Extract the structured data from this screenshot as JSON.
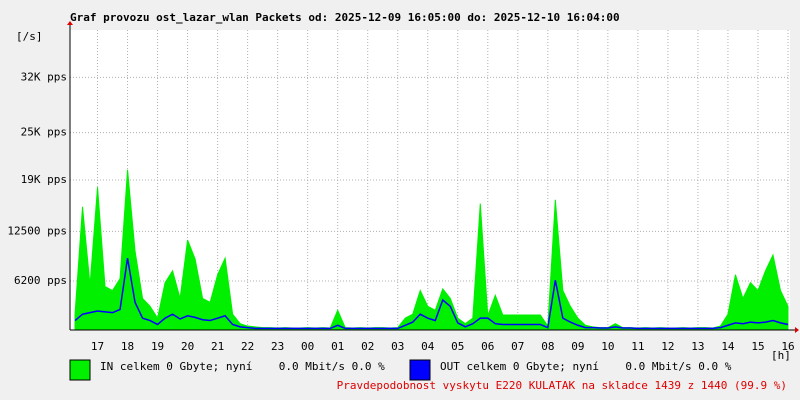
{
  "chart_data": {
    "type": "area",
    "title": "Graf provozu ost_lazar_wlan Packets od: 2025-12-09 16:05:00 do: 2025-12-10 16:04:00",
    "y_label": "[/s]",
    "x_label": "[h]",
    "annotation": "Pravdepodobnost vyskytu E220 KULATAK na skladce 1439 z 1440 (99.9 %)",
    "grid": true,
    "xlim": [
      16.083,
      40.067
    ],
    "ylim": [
      0,
      38000
    ],
    "xticks": [
      17,
      18,
      19,
      20,
      21,
      22,
      23,
      {
        "value": 24,
        "label": "00"
      },
      {
        "value": 25,
        "label": "01"
      },
      {
        "value": 26,
        "label": "02"
      },
      {
        "value": 27,
        "label": "03"
      },
      {
        "value": 28,
        "label": "04"
      },
      {
        "value": 29,
        "label": "05"
      },
      {
        "value": 30,
        "label": "06"
      },
      {
        "value": 31,
        "label": "07"
      },
      {
        "value": 32,
        "label": "08"
      },
      {
        "value": 33,
        "label": "09"
      },
      {
        "value": 34,
        "label": "10"
      },
      {
        "value": 35,
        "label": "11"
      },
      {
        "value": 36,
        "label": "12"
      },
      {
        "value": 37,
        "label": "13"
      },
      {
        "value": 38,
        "label": "14"
      },
      {
        "value": 39,
        "label": "15"
      },
      {
        "value": 40,
        "label": "16"
      }
    ],
    "yticks": [
      {
        "value": 6200,
        "label": "6200 pps"
      },
      {
        "value": 12500,
        "label": "12500 pps"
      },
      {
        "value": 19000,
        "label": "19K pps"
      },
      {
        "value": 25000,
        "label": "25K pps"
      },
      {
        "value": 32000,
        "label": "32K pps"
      }
    ],
    "x": [
      16.25,
      16.5,
      16.75,
      17,
      17.25,
      17.5,
      17.75,
      18,
      18.25,
      18.5,
      18.75,
      19,
      19.25,
      19.5,
      19.75,
      20,
      20.25,
      20.5,
      20.75,
      21,
      21.25,
      21.5,
      21.75,
      22,
      22.25,
      22.5,
      22.75,
      23,
      23.25,
      23.5,
      23.75,
      24,
      24.25,
      24.5,
      24.75,
      25,
      25.25,
      25.5,
      25.75,
      26,
      26.25,
      26.5,
      26.75,
      27,
      27.25,
      27.5,
      27.75,
      28,
      28.25,
      28.5,
      28.75,
      29,
      29.25,
      29.5,
      29.75,
      30,
      30.25,
      30.5,
      30.75,
      31,
      31.25,
      31.5,
      31.75,
      32,
      32.25,
      32.5,
      32.75,
      33,
      33.25,
      33.5,
      33.75,
      34,
      34.25,
      34.5,
      34.75,
      35,
      35.25,
      35.5,
      35.75,
      36,
      36.25,
      36.5,
      36.75,
      37,
      37.25,
      37.5,
      37.75,
      38,
      38.25,
      38.5,
      38.75,
      39,
      39.25,
      39.5,
      39.75,
      40
    ],
    "series": [
      {
        "name": "IN celkem 0 Gbyte; nyní    0.0 Mbit/s 0.0 %",
        "color": "#00f000",
        "values": [
          2000,
          15600,
          5700,
          18100,
          5500,
          5000,
          6500,
          20300,
          10000,
          4000,
          3000,
          1500,
          6000,
          7500,
          4000,
          11400,
          9000,
          4000,
          3500,
          7000,
          9100,
          2000,
          800,
          500,
          400,
          300,
          300,
          250,
          300,
          250,
          250,
          300,
          250,
          300,
          250,
          2500,
          300,
          250,
          300,
          250,
          300,
          300,
          250,
          300,
          1500,
          2000,
          5000,
          3000,
          2500,
          5200,
          4000,
          1500,
          800,
          1500,
          16000,
          1800,
          4400,
          1900,
          1900,
          1900,
          1900,
          1900,
          1900,
          500,
          16500,
          5000,
          3000,
          1500,
          600,
          400,
          300,
          300,
          800,
          300,
          300,
          250,
          300,
          250,
          300,
          250,
          250,
          300,
          250,
          300,
          300,
          250,
          500,
          2000,
          7000,
          4000,
          6000,
          5000,
          7500,
          9500,
          5000,
          3000
        ]
      },
      {
        "name": "OUT celkem 0 Gbyte; nyní    0.0 Mbit/s 0.0 %",
        "color": "#0000ff",
        "values": [
          1200,
          2000,
          2200,
          2400,
          2300,
          2200,
          2600,
          9100,
          3500,
          1500,
          1200,
          700,
          1500,
          2000,
          1400,
          1800,
          1600,
          1300,
          1200,
          1500,
          1800,
          700,
          400,
          300,
          200,
          200,
          200,
          200,
          200,
          200,
          200,
          200,
          200,
          200,
          200,
          600,
          200,
          200,
          200,
          200,
          200,
          200,
          200,
          200,
          600,
          1000,
          2000,
          1500,
          1200,
          3800,
          3000,
          900,
          400,
          800,
          1500,
          1500,
          800,
          700,
          700,
          700,
          700,
          700,
          700,
          300,
          6300,
          1500,
          1000,
          600,
          300,
          300,
          250,
          250,
          400,
          250,
          250,
          200,
          200,
          200,
          200,
          200,
          200,
          200,
          200,
          200,
          200,
          200,
          300,
          600,
          900,
          800,
          1000,
          900,
          1000,
          1200,
          900,
          700
        ]
      }
    ]
  }
}
